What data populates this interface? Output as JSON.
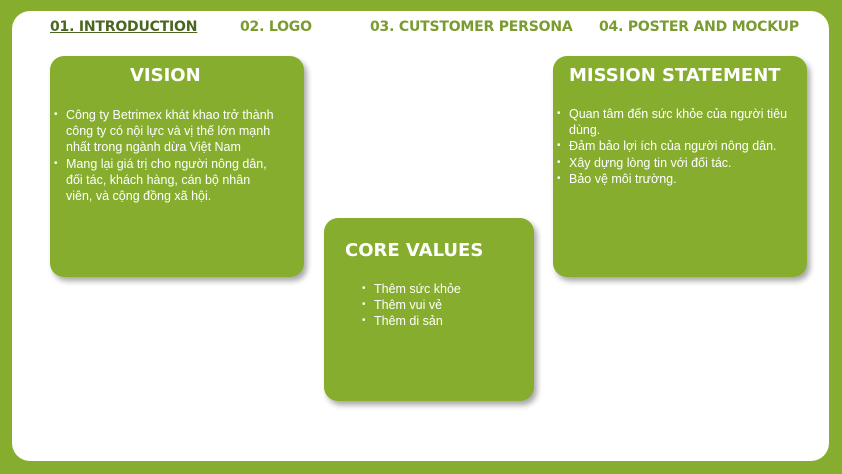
{
  "nav": {
    "items": [
      {
        "label": "01. INTRODUCTION",
        "active": true
      },
      {
        "label": "02. LOGO",
        "active": false
      },
      {
        "label": "03. CUTSTOMER PERSONA",
        "active": false
      },
      {
        "label": "04. POSTER AND MOCKUP",
        "active": false
      }
    ]
  },
  "vision": {
    "title": "VISION",
    "items": [
      "Công ty Betrimex khát khao trở thành công ty có nội lực và vị thế lớn mạnh nhất trong ngành dừa Việt Nam",
      "Mang lại giá trị cho người nông dân, đối tác, khách hàng, cán bộ nhân viên, và cộng đồng xã hội."
    ]
  },
  "core_values": {
    "title": "CORE VALUES",
    "items": [
      "Thêm sức khỏe",
      "Thêm vui vẻ",
      "Thêm di sản"
    ]
  },
  "mission": {
    "title": "MISSION STATEMENT",
    "items": [
      "Quan tâm đến sức khỏe của người tiêu dùng.",
      "Đảm bảo lợi ích của người nông dân.",
      "Xây dựng lòng tin với đối tác.",
      "Bảo vệ môi trường."
    ]
  },
  "colors": {
    "accent": "#86ad2e",
    "nav_text": "#7a9b2f",
    "nav_active": "#4b6620",
    "background": "#ffffff"
  }
}
